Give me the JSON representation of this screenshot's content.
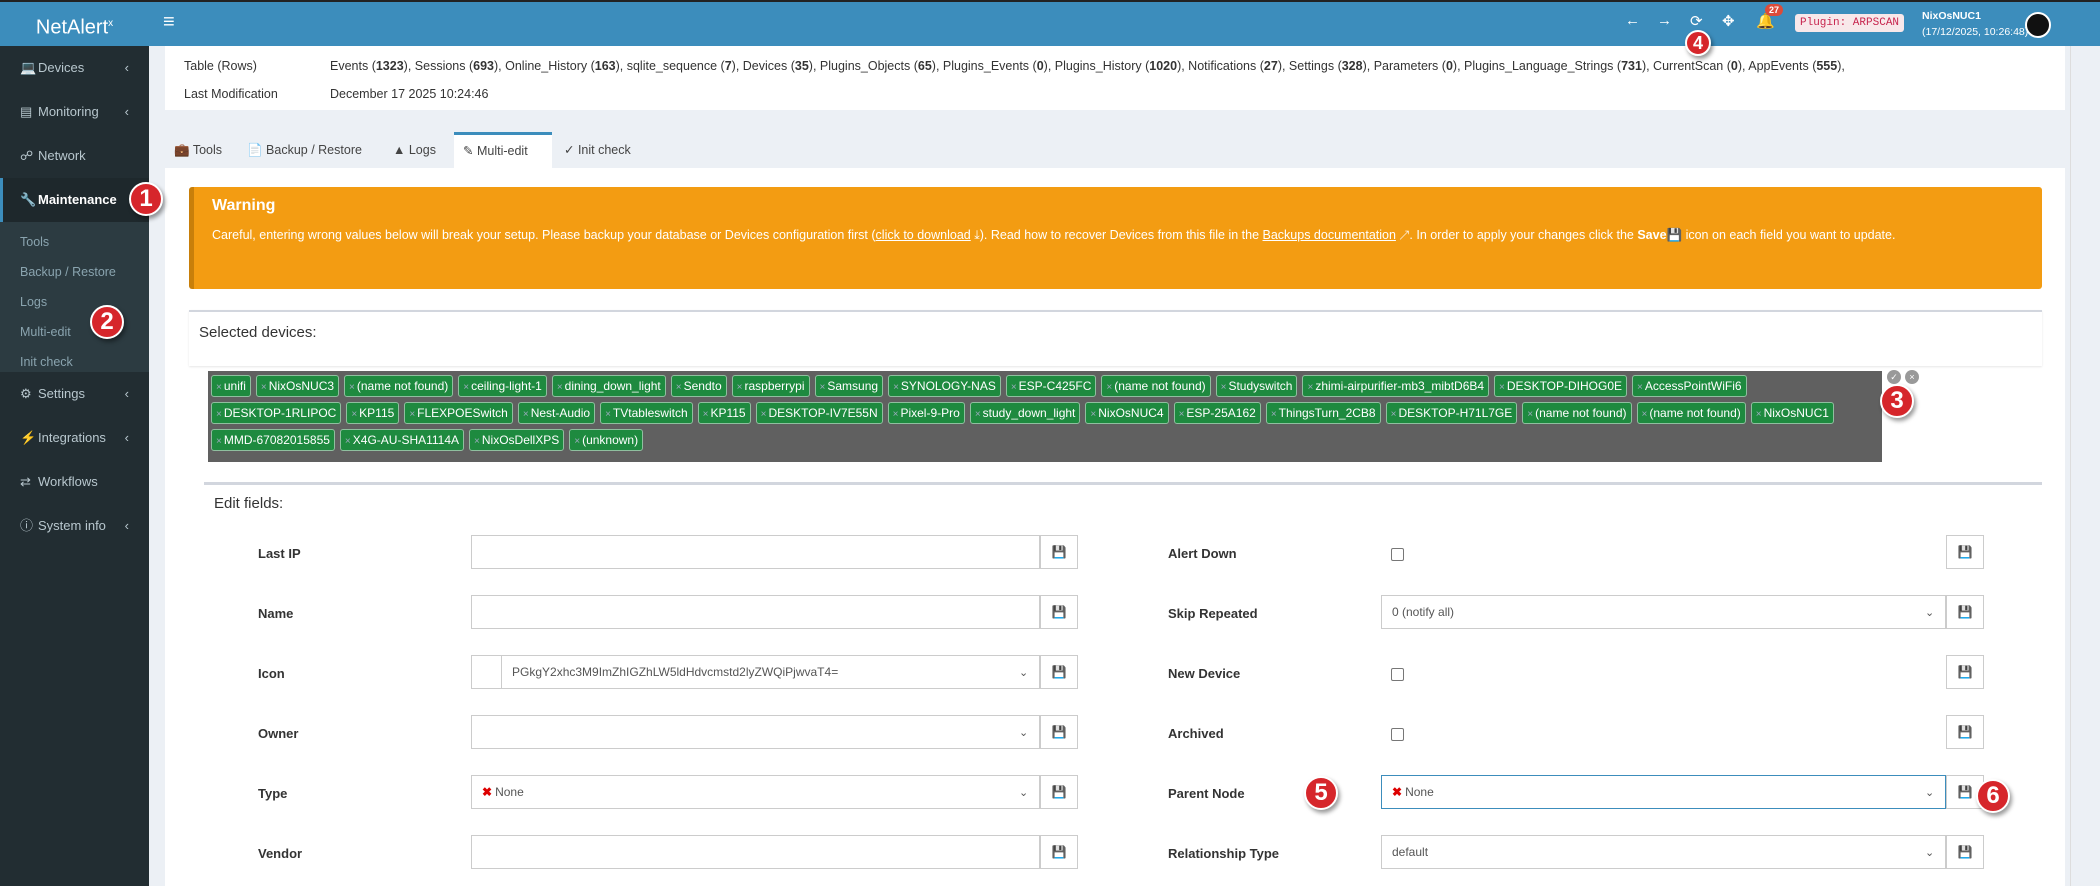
{
  "app": {
    "logo": "NetAlert",
    "logo_sup": "x"
  },
  "header": {
    "notifications_count": "27",
    "plugin_badge": "Plugin: ARPSCAN",
    "user_name": "NixOsNUC1",
    "user_time": "(17/12/2025, 10:26:48)",
    "accent": "#3c8dbc"
  },
  "sidebar": {
    "items": [
      {
        "label": "Devices",
        "icon": "laptop-icon",
        "chevron": true
      },
      {
        "label": "Monitoring",
        "icon": "chart-icon",
        "chevron": true
      },
      {
        "label": "Network",
        "icon": "network-icon",
        "chevron": false
      },
      {
        "label": "Maintenance",
        "icon": "wrench-icon",
        "chevron": false,
        "active": true
      },
      {
        "label": "Settings",
        "icon": "gear-icon",
        "chevron": true
      },
      {
        "label": "Integrations",
        "icon": "plug-icon",
        "chevron": true
      },
      {
        "label": "Workflows",
        "icon": "shuffle-icon",
        "chevron": false
      },
      {
        "label": "System info",
        "icon": "info-icon",
        "chevron": true
      }
    ],
    "submenu": [
      "Tools",
      "Backup / Restore",
      "Logs",
      "Multi-edit",
      "Init check"
    ]
  },
  "annotations": [
    "1",
    "2",
    "3",
    "4",
    "5",
    "6"
  ],
  "info": {
    "table_label": "Table (Rows)",
    "last_mod_label": "Last Modification",
    "last_mod_value": "December 17 2025 10:24:46",
    "tables": [
      {
        "name": "Events",
        "count": "1323"
      },
      {
        "name": "Sessions",
        "count": "693"
      },
      {
        "name": "Online_History",
        "count": "163"
      },
      {
        "name": "sqlite_sequence",
        "count": "7"
      },
      {
        "name": "Devices",
        "count": "35"
      },
      {
        "name": "Plugins_Objects",
        "count": "65"
      },
      {
        "name": "Plugins_Events",
        "count": "0"
      },
      {
        "name": "Plugins_History",
        "count": "1020"
      },
      {
        "name": "Notifications",
        "count": "27"
      },
      {
        "name": "Settings",
        "count": "328"
      },
      {
        "name": "Parameters",
        "count": "0"
      },
      {
        "name": "Plugins_Language_Strings",
        "count": "731"
      },
      {
        "name": "CurrentScan",
        "count": "0"
      },
      {
        "name": "AppEvents",
        "count": "555"
      }
    ]
  },
  "tabs": [
    {
      "label": "Tools",
      "icon": "toolbox-icon"
    },
    {
      "label": "Backup / Restore",
      "icon": "file-shield-icon"
    },
    {
      "label": "Logs",
      "icon": "warning-icon"
    },
    {
      "label": "Multi-edit",
      "icon": "pencil-icon",
      "active": true
    },
    {
      "label": "Init check",
      "icon": "check-icon"
    }
  ],
  "warning": {
    "title": "Warning",
    "text1": "Careful, entering wrong values below will break your setup. Please backup your database or Devices configuration first (",
    "link1": "click to download",
    "text2": "). Read how to recover Devices from this file in the ",
    "link2": "Backups documentation",
    "text3": ". In order to apply your changes click the ",
    "bold": "Save",
    "text4": " icon on each field you want to update.",
    "color": "#f39c12"
  },
  "selected": {
    "label": "Selected devices:",
    "devices": [
      "unifi",
      "NixOsNUC3",
      "(name not found)",
      "ceiling-light-1",
      "dining_down_light",
      "Sendto",
      "raspberrypi",
      "Samsung",
      "SYNOLOGY-NAS",
      "ESP-C425FC",
      "(name not found)",
      "Studyswitch",
      "zhimi-airpurifier-mb3_mibtD6B4",
      "DESKTOP-DIHOG0E",
      "AccessPointWiFi6",
      "DESKTOP-1RLIPOC",
      "KP115",
      "FLEXPOESwitch",
      "Nest-Audio",
      "TVtableswitch",
      "KP115",
      "DESKTOP-IV7E55N",
      "Pixel-9-Pro",
      "study_down_light",
      "NixOsNUC4",
      "ESP-25A162",
      "ThingsTurn_2CB8",
      "DESKTOP-H71L7GE",
      "(name not found)",
      "(name not found)",
      "NixOsNUC1",
      "MMD-67082015855",
      "X4G-AU-SHA1114A",
      "NixOsDellXPS",
      "(unknown)"
    ]
  },
  "edit": {
    "title": "Edit fields:",
    "left": [
      {
        "label": "Last IP",
        "type": "text",
        "value": ""
      },
      {
        "label": "Name",
        "type": "text",
        "value": ""
      },
      {
        "label": "Icon",
        "type": "select",
        "value": "PGkgY2xhc3M9ImZhIGZhLW5ldHdvcmstd2lyZWQiPjwvaT4="
      },
      {
        "label": "Owner",
        "type": "select",
        "value": ""
      },
      {
        "label": "Type",
        "type": "select",
        "value": "None"
      },
      {
        "label": "Vendor",
        "type": "text",
        "value": ""
      }
    ],
    "right": [
      {
        "label": "Alert Down",
        "type": "checkbox",
        "value": false
      },
      {
        "label": "Skip Repeated",
        "type": "select",
        "value": "0 (notify all)"
      },
      {
        "label": "New Device",
        "type": "checkbox",
        "value": false
      },
      {
        "label": "Archived",
        "type": "checkbox",
        "value": false
      },
      {
        "label": "Parent Node",
        "type": "select",
        "value": "None"
      },
      {
        "label": "Relationship Type",
        "type": "select",
        "value": "default"
      }
    ]
  }
}
